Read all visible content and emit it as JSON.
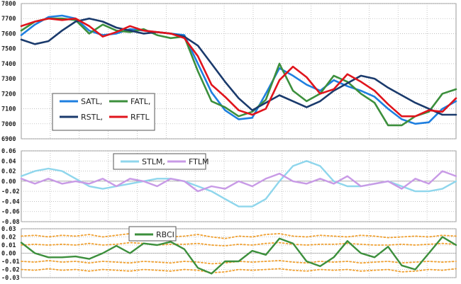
{
  "chart_data": [
    {
      "type": "line",
      "panel": "price",
      "ylim": [
        6900,
        7800
      ],
      "yticks": [
        "7800",
        "7700",
        "7600",
        "7500",
        "7400",
        "7300",
        "7200",
        "7100",
        "7000",
        "6900"
      ],
      "grid": true,
      "legend_position": "bottom-left",
      "x": [
        0,
        20,
        40,
        60,
        80,
        100,
        120,
        140,
        160,
        180,
        200,
        220,
        240,
        260,
        280,
        300,
        320,
        340,
        360,
        380,
        400,
        420,
        440,
        460,
        480,
        500,
        520,
        540,
        560,
        580,
        600,
        620,
        640
      ],
      "series": [
        {
          "name": "SATL,",
          "color": "#1e7fe0",
          "values": [
            7590,
            7660,
            7710,
            7720,
            7700,
            7620,
            7590,
            7600,
            7630,
            7620,
            7610,
            7600,
            7590,
            7400,
            7210,
            7090,
            7030,
            7040,
            7200,
            7370,
            7320,
            7260,
            7220,
            7290,
            7250,
            7220,
            7180,
            7100,
            7030,
            7000,
            7010,
            7100,
            7150
          ]
        },
        {
          "name": "FATL,",
          "color": "#3c8f3c",
          "values": [
            7620,
            7680,
            7700,
            7700,
            7690,
            7600,
            7660,
            7620,
            7610,
            7630,
            7590,
            7570,
            7580,
            7350,
            7150,
            7110,
            7050,
            7080,
            7160,
            7400,
            7220,
            7150,
            7200,
            7320,
            7280,
            7200,
            7140,
            6990,
            6990,
            7050,
            7080,
            7200,
            7230
          ]
        },
        {
          "name": "RSTL,",
          "color": "#1a3a6c",
          "values": [
            7560,
            7530,
            7550,
            7620,
            7680,
            7700,
            7680,
            7640,
            7620,
            7600,
            7610,
            7600,
            7580,
            7520,
            7400,
            7280,
            7170,
            7090,
            7140,
            7190,
            7150,
            7110,
            7150,
            7220,
            7270,
            7320,
            7300,
            7240,
            7190,
            7140,
            7100,
            7060,
            7060
          ]
        },
        {
          "name": "RFTL",
          "color": "#e0141c",
          "values": [
            7650,
            7680,
            7700,
            7690,
            7700,
            7650,
            7580,
            7610,
            7650,
            7620,
            7610,
            7600,
            7570,
            7450,
            7260,
            7180,
            7090,
            7060,
            7100,
            7290,
            7380,
            7310,
            7200,
            7230,
            7330,
            7280,
            7220,
            7130,
            7050,
            7050,
            7090,
            7080,
            7170
          ]
        }
      ]
    },
    {
      "type": "line",
      "panel": "momentum",
      "ylim": [
        -0.08,
        0.06
      ],
      "yticks": [
        "0.06",
        "0.04",
        "0.02",
        "0.00",
        "-0.02",
        "-0.04",
        "-0.06",
        "-0.08"
      ],
      "grid": true,
      "legend_position": "top-center",
      "x": [
        0,
        20,
        40,
        60,
        80,
        100,
        120,
        140,
        160,
        180,
        200,
        220,
        240,
        260,
        280,
        300,
        320,
        340,
        360,
        380,
        400,
        420,
        440,
        460,
        480,
        500,
        520,
        540,
        560,
        580,
        600,
        620,
        640
      ],
      "series": [
        {
          "name": "STLM,",
          "color": "#8fd6ec",
          "values": [
            0.01,
            0.02,
            0.025,
            0.02,
            0.005,
            -0.01,
            -0.015,
            -0.01,
            -0.005,
            0.0,
            0.005,
            0.005,
            0.0,
            -0.01,
            -0.02,
            -0.035,
            -0.05,
            -0.05,
            -0.035,
            0.0,
            0.03,
            0.04,
            0.03,
            0.0,
            -0.01,
            -0.01,
            -0.005,
            0.0,
            -0.01,
            -0.02,
            -0.02,
            -0.015,
            0.0
          ]
        },
        {
          "name": "FTLM",
          "color": "#c89ae6",
          "values": [
            0.005,
            -0.005,
            0.005,
            -0.005,
            0.0,
            -0.005,
            0.005,
            -0.01,
            0.005,
            0.0,
            -0.01,
            0.005,
            0.0,
            -0.02,
            -0.01,
            -0.015,
            0.0,
            -0.01,
            0.005,
            0.015,
            0.0,
            -0.005,
            0.005,
            -0.005,
            0.01,
            -0.01,
            -0.005,
            0.0,
            -0.015,
            0.005,
            -0.005,
            0.02,
            0.01
          ]
        }
      ]
    },
    {
      "type": "line",
      "panel": "oscillator",
      "ylim": [
        -0.03,
        0.03
      ],
      "yticks": [
        "0.03",
        "0.02",
        "0.01",
        "0.00",
        "-0.01",
        "-0.02",
        "-0.03"
      ],
      "grid": true,
      "legend_position": "top-left",
      "x": [
        0,
        20,
        40,
        60,
        80,
        100,
        120,
        140,
        160,
        180,
        200,
        220,
        240,
        260,
        280,
        300,
        320,
        340,
        360,
        380,
        400,
        420,
        440,
        460,
        480,
        500,
        520,
        540,
        560,
        580,
        600,
        620,
        640
      ],
      "series": [
        {
          "name": "RBCI",
          "color": "#3c8f3c",
          "values": [
            0.013,
            0.0,
            -0.005,
            -0.005,
            -0.004,
            -0.007,
            0.0,
            0.009,
            0.0,
            0.012,
            0.01,
            0.014,
            0.005,
            -0.018,
            -0.025,
            -0.01,
            -0.01,
            0.003,
            -0.002,
            0.018,
            0.012,
            -0.01,
            -0.016,
            -0.005,
            0.015,
            0.0,
            -0.005,
            0.008,
            -0.015,
            -0.02,
            0.0,
            0.02,
            0.01
          ]
        }
      ],
      "bands": {
        "color": "#f0a030",
        "values": [
          [
            0.021,
            0.022,
            0.02,
            0.022,
            0.021,
            0.023,
            0.02,
            0.022,
            0.024,
            0.021,
            0.022,
            0.02,
            0.021,
            0.023,
            0.02,
            0.018,
            0.021,
            0.02,
            0.023,
            0.024,
            0.021,
            0.02,
            0.022,
            0.021,
            0.02,
            0.022,
            0.021,
            0.019,
            0.02,
            0.021,
            0.02,
            0.022,
            0.021
          ],
          [
            0.01,
            0.011,
            0.01,
            0.011,
            0.01,
            0.012,
            0.01,
            0.011,
            0.013,
            0.012,
            0.01,
            0.011,
            0.011,
            0.012,
            0.01,
            0.009,
            0.011,
            0.01,
            0.012,
            0.013,
            0.011,
            0.01,
            0.011,
            0.011,
            0.012,
            0.011,
            0.01,
            0.01,
            0.011,
            0.01,
            0.011,
            0.012,
            0.011
          ],
          [
            -0.01,
            -0.011,
            -0.009,
            -0.011,
            -0.01,
            -0.012,
            -0.01,
            -0.011,
            -0.012,
            -0.01,
            -0.011,
            -0.012,
            -0.01,
            -0.011,
            -0.013,
            -0.012,
            -0.01,
            -0.011,
            -0.01,
            -0.009,
            -0.011,
            -0.012,
            -0.01,
            -0.011,
            -0.01,
            -0.012,
            -0.011,
            -0.01,
            -0.012,
            -0.011,
            -0.01,
            -0.011,
            -0.01
          ],
          [
            -0.02,
            -0.021,
            -0.019,
            -0.021,
            -0.02,
            -0.022,
            -0.02,
            -0.021,
            -0.022,
            -0.02,
            -0.021,
            -0.022,
            -0.02,
            -0.021,
            -0.024,
            -0.023,
            -0.02,
            -0.021,
            -0.02,
            -0.019,
            -0.021,
            -0.022,
            -0.02,
            -0.021,
            -0.02,
            -0.022,
            -0.021,
            -0.02,
            -0.023,
            -0.022,
            -0.02,
            -0.021,
            -0.019
          ]
        ]
      }
    }
  ]
}
